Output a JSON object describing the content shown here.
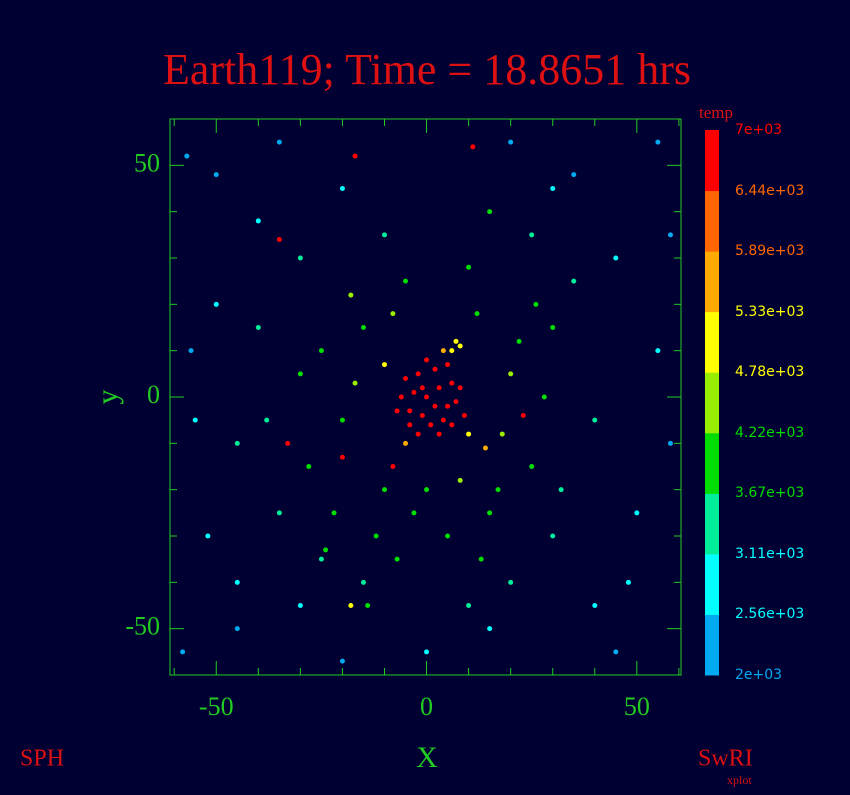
{
  "chart_data": {
    "type": "scatter",
    "title": "Earth119; Time = 18.8651 hrs",
    "xlabel": "X",
    "ylabel": "y",
    "left_note": "SPH",
    "right_note": "SwRI",
    "right_subnote": "xplot",
    "colorbar_title": "temp",
    "xlim": [
      -61,
      60.5
    ],
    "ylim": [
      -60,
      60
    ],
    "xticks": [
      -50,
      0,
      50
    ],
    "yticks": [
      -50,
      0,
      50
    ],
    "xminorticks": [
      -60,
      -40,
      -30,
      -20,
      -10,
      10,
      20,
      30,
      40,
      60
    ],
    "yminorticks": [
      -40,
      -30,
      -20,
      -10,
      10,
      20,
      30,
      40
    ],
    "clim": [
      2000,
      7000
    ],
    "cticks": [
      {
        "value": 7000,
        "label": "7e+03"
      },
      {
        "value": 6440,
        "label": "6.44e+03"
      },
      {
        "value": 5890,
        "label": "5.89e+03"
      },
      {
        "value": 5330,
        "label": "5.33e+03"
      },
      {
        "value": 4780,
        "label": "4.78e+03"
      },
      {
        "value": 4220,
        "label": "4.22e+03"
      },
      {
        "value": 3670,
        "label": "3.67e+03"
      },
      {
        "value": 3110,
        "label": "3.11e+03"
      },
      {
        "value": 2560,
        "label": "2.56e+03"
      },
      {
        "value": 2000,
        "label": "2e+03"
      }
    ],
    "colors": [
      "#00aaee",
      "#00ffff",
      "#00ee99",
      "#00dd00",
      "#99ee00",
      "#ffff00",
      "#ffaa00",
      "#ff6600",
      "#ff0000"
    ],
    "axis_color": "#22cc22",
    "text_color": "#dd1111",
    "series": [
      {
        "x": [
          -57,
          55,
          -58,
          -35,
          20,
          -56,
          58,
          45,
          -20,
          -50,
          35,
          -45,
          58,
          -50,
          45,
          -45,
          50,
          -30,
          40,
          -55,
          55,
          0,
          -20,
          30,
          -40,
          15,
          -52,
          48,
          -35,
          30,
          -40,
          35,
          -15,
          20,
          -30,
          40,
          -45,
          10,
          -25,
          32,
          -10,
          25,
          -38,
          -15,
          12,
          -20,
          18,
          -10,
          15,
          -25,
          22,
          -5,
          5,
          -18,
          25,
          -28,
          10,
          -12,
          20,
          -22,
          28,
          0,
          -8,
          15,
          -14,
          30,
          -30,
          8,
          -3,
          13,
          -17,
          17,
          -7,
          26,
          -24,
          6,
          8,
          4,
          7,
          -5,
          10,
          -18,
          14,
          -10,
          0,
          3,
          -3,
          5,
          -4,
          2,
          -2,
          6,
          7,
          -6,
          1,
          4,
          -1,
          3,
          -5,
          8,
          -2,
          0,
          5,
          -7,
          6,
          -4,
          2,
          -1,
          9,
          -35,
          -17,
          11,
          -8,
          -33,
          23,
          -20
        ],
        "values": [
          52,
          55,
          -55,
          55,
          55,
          10,
          35,
          -55,
          -57,
          48,
          48,
          -50,
          -10,
          20,
          30,
          -40,
          -25,
          -45,
          -45,
          -5,
          10,
          -55,
          45,
          45,
          38,
          -50,
          -30,
          -40,
          -25,
          -30,
          15,
          25,
          -40,
          -40,
          30,
          -5,
          -10,
          -45,
          -35,
          -20,
          35,
          35,
          -5,
          15,
          18,
          -5,
          -8,
          -20,
          -25,
          10,
          12,
          25,
          -30,
          22,
          -15,
          -15,
          28,
          -30,
          5,
          -25,
          0,
          -20,
          18,
          40,
          -45,
          15,
          5,
          -18,
          -25,
          -35,
          3,
          -20,
          -35,
          20,
          -33,
          10,
          11,
          10,
          12,
          -10,
          -8,
          -45,
          -11,
          7,
          0,
          2,
          1,
          -2,
          -3,
          6,
          5,
          3,
          -1,
          0,
          -6,
          -5,
          -4,
          -8,
          4,
          2,
          -8,
          8,
          7,
          -3,
          -6,
          -6,
          -2,
          2,
          -4,
          34,
          52,
          54,
          -15,
          -10,
          -4,
          -13
        ],
        "c": [
          2300,
          2200,
          2300,
          2400,
          2300,
          2200,
          2300,
          2200,
          2400,
          2300,
          2400,
          2200,
          2300,
          2800,
          2700,
          2900,
          2800,
          2900,
          2700,
          2800,
          2900,
          2700,
          2800,
          2600,
          2900,
          2800,
          2700,
          2800,
          3400,
          3500,
          3300,
          3400,
          3500,
          3400,
          3500,
          3300,
          3400,
          3500,
          3500,
          3400,
          3500,
          3400,
          3300,
          4000,
          4100,
          3900,
          4300,
          4000,
          3900,
          4200,
          4000,
          4100,
          3900,
          4300,
          4000,
          3900,
          4100,
          4000,
          4400,
          3800,
          4000,
          4200,
          4500,
          4100,
          3800,
          3900,
          3900,
          4400,
          4100,
          3900,
          4300,
          4000,
          3800,
          3900,
          3800,
          5100,
          5000,
          5600,
          5100,
          5500,
          5200,
          5000,
          5800,
          5000,
          6800,
          6800,
          6800,
          6800,
          6800,
          6800,
          6800,
          6800,
          6800,
          6800,
          6800,
          6800,
          6800,
          6800,
          6800,
          6800,
          6800,
          6800,
          6800,
          6800,
          6800,
          6800,
          6800,
          6800,
          6800,
          6800,
          6800,
          6800,
          6800,
          6800,
          6800,
          6800
        ]
      }
    ]
  }
}
